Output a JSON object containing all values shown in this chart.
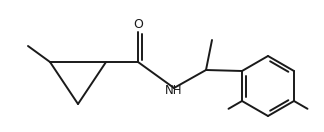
{
  "background_color": "#ffffff",
  "line_color": "#1a1a1a",
  "line_width": 1.4,
  "figsize": [
    3.24,
    1.32
  ],
  "dpi": 100
}
